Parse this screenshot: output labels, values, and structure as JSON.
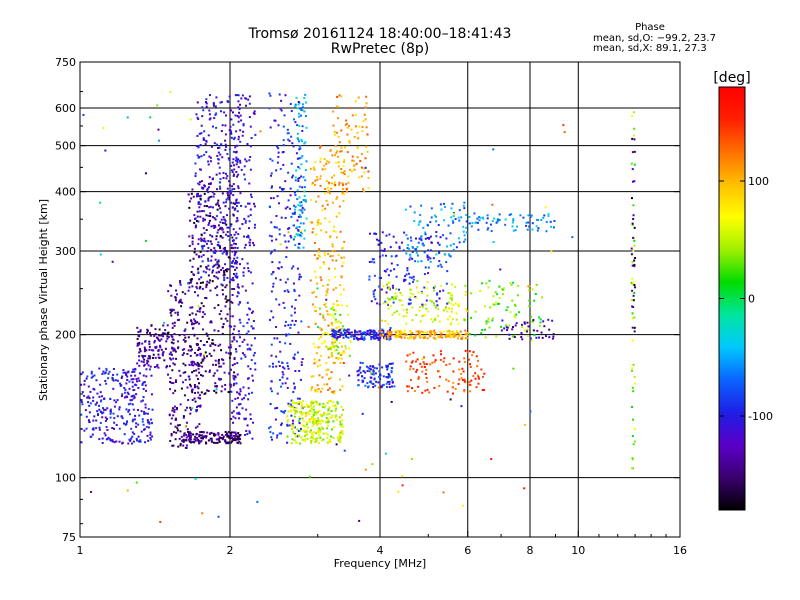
{
  "header": {
    "title_line1": "Tromsø 20161124 18:40:00–18:41:43",
    "title_line2": "RwPretec (8p)",
    "phase_title": "Phase",
    "phase_o": "mean, sd,O: −99.2, 23.7",
    "phase_x": "mean, sd,X:  89.1, 27.3"
  },
  "chart_data": {
    "type": "scatter",
    "xlabel": "Frequency [MHz]",
    "ylabel": "Stationary phase Virtual Height [km]",
    "x_scale": "log",
    "y_scale": "log",
    "xlim": [
      1,
      16
    ],
    "ylim": [
      75,
      750
    ],
    "x_ticks": [
      1,
      2,
      4,
      6,
      8,
      10,
      16
    ],
    "y_ticks": [
      75,
      100,
      200,
      300,
      400,
      500,
      600,
      750
    ],
    "x_grid": [
      2,
      4,
      6,
      8,
      10,
      16
    ],
    "y_grid": [
      100,
      200,
      300,
      400,
      500,
      600
    ],
    "grid": true,
    "colorbar": {
      "label": "[deg]",
      "range": [
        -180,
        180
      ],
      "ticks": [
        100,
        0,
        -100
      ],
      "colormap": [
        "#000000",
        "#3b0070",
        "#5a00c8",
        "#1e1ee6",
        "#0a64ff",
        "#00c8ff",
        "#00e6a0",
        "#00dc00",
        "#a0f000",
        "#ffff00",
        "#ffc000",
        "#ff7000",
        "#ff2000",
        "#ff0000"
      ]
    },
    "clusters": [
      {
        "x": [
          1.0,
          1.4
        ],
        "y": [
          118,
          170
        ],
        "phase": -105,
        "n": 300
      },
      {
        "x": [
          1.3,
          1.55
        ],
        "y": [
          170,
          210
        ],
        "phase": -135,
        "n": 130
      },
      {
        "x": [
          1.5,
          1.75
        ],
        "y": [
          115,
          260
        ],
        "phase": -140,
        "n": 200
      },
      {
        "x": [
          1.65,
          2.05
        ],
        "y": [
          150,
          420
        ],
        "phase": -150,
        "n": 350
      },
      {
        "x": [
          1.7,
          2.1
        ],
        "y": [
          250,
          640
        ],
        "phase": -110,
        "n": 300
      },
      {
        "x": [
          1.6,
          2.1
        ],
        "y": [
          118,
          125
        ],
        "phase": -150,
        "n": 160
      },
      {
        "x": [
          2.0,
          2.25
        ],
        "y": [
          120,
          640
        ],
        "phase": -115,
        "n": 260
      },
      {
        "x": [
          2.4,
          2.8
        ],
        "y": [
          118,
          650
        ],
        "phase": -100,
        "n": 280
      },
      {
        "x": [
          2.7,
          2.85
        ],
        "y": [
          300,
          650
        ],
        "phase": -40,
        "n": 80
      },
      {
        "x": [
          2.6,
          3.0
        ],
        "y": [
          118,
          145
        ],
        "phase": 60,
        "n": 120
      },
      {
        "x": [
          2.9,
          3.4
        ],
        "y": [
          118,
          145
        ],
        "phase": 55,
        "n": 140
      },
      {
        "x": [
          2.9,
          3.4
        ],
        "y": [
          150,
          500
        ],
        "phase": 100,
        "n": 260
      },
      {
        "x": [
          3.0,
          3.5
        ],
        "y": [
          180,
          230
        ],
        "phase": 45,
        "n": 60
      },
      {
        "x": [
          3.2,
          3.8
        ],
        "y": [
          400,
          640
        ],
        "phase": 110,
        "n": 90
      },
      {
        "x": [
          3.2,
          4.2
        ],
        "y": [
          195,
          205
        ],
        "phase": -100,
        "n": 150
      },
      {
        "x": [
          4.0,
          6.0
        ],
        "y": [
          196,
          204
        ],
        "phase": 100,
        "n": 160
      },
      {
        "x": [
          3.6,
          4.3
        ],
        "y": [
          155,
          175
        ],
        "phase": -90,
        "n": 100
      },
      {
        "x": [
          4.5,
          6.5
        ],
        "y": [
          150,
          185
        ],
        "phase": 140,
        "n": 110
      },
      {
        "x": [
          3.8,
          5.5
        ],
        "y": [
          230,
          330
        ],
        "phase": -100,
        "n": 150
      },
      {
        "x": [
          4.0,
          6.0
        ],
        "y": [
          210,
          260
        ],
        "phase": 60,
        "n": 120
      },
      {
        "x": [
          4.5,
          6.0
        ],
        "y": [
          280,
          380
        ],
        "phase": -60,
        "n": 90
      },
      {
        "x": [
          6.0,
          8.5
        ],
        "y": [
          195,
          260
        ],
        "phase": 30,
        "n": 80
      },
      {
        "x": [
          6.0,
          9.0
        ],
        "y": [
          330,
          360
        ],
        "phase": -60,
        "n": 70
      },
      {
        "x": [
          7.0,
          9.0
        ],
        "y": [
          195,
          215
        ],
        "phase": -130,
        "n": 40
      },
      {
        "x": [
          12.8,
          13.0
        ],
        "y": [
          100,
          620
        ],
        "phase": 40,
        "n": 40
      },
      {
        "x": [
          12.8,
          13.0
        ],
        "y": [
          200,
          520
        ],
        "phase": -150,
        "n": 30
      },
      {
        "x": [
          1.0,
          10.0
        ],
        "y": [
          80,
          650
        ],
        "phase": 0,
        "n": 90
      }
    ]
  }
}
